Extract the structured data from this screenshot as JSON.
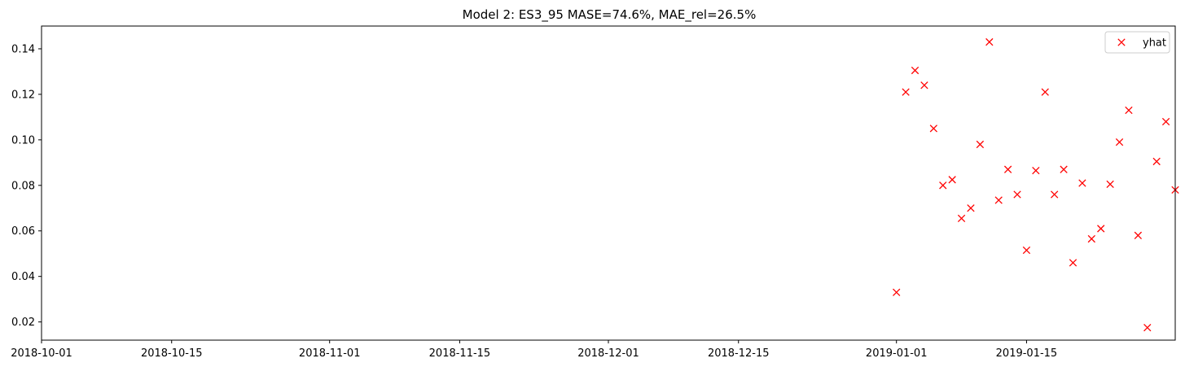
{
  "chart_data": {
    "type": "scatter",
    "title": "Model 2: ES3_95 MASE=74.6%, MAE_rel=26.5%",
    "xlabel": "",
    "ylabel": "",
    "x_type": "date",
    "xlim": [
      "2018-10-01",
      "2019-01-31"
    ],
    "ylim": [
      0.012,
      0.15
    ],
    "grid": false,
    "legend_position": "top-right",
    "marker": "x",
    "marker_color": "#ff0000",
    "x_ticks": [
      "2018-10-01",
      "2018-10-15",
      "2018-11-01",
      "2018-11-15",
      "2018-12-01",
      "2018-12-15",
      "2019-01-01",
      "2019-01-15"
    ],
    "y_ticks": [
      "0.02",
      "0.04",
      "0.06",
      "0.08",
      "0.10",
      "0.12",
      "0.14"
    ],
    "series": [
      {
        "name": "yhat",
        "x": [
          "2019-01-01",
          "2019-01-02",
          "2019-01-03",
          "2019-01-04",
          "2019-01-05",
          "2019-01-06",
          "2019-01-07",
          "2019-01-08",
          "2019-01-09",
          "2019-01-10",
          "2019-01-11",
          "2019-01-12",
          "2019-01-13",
          "2019-01-14",
          "2019-01-15",
          "2019-01-16",
          "2019-01-17",
          "2019-01-18",
          "2019-01-19",
          "2019-01-20",
          "2019-01-21",
          "2019-01-22",
          "2019-01-23",
          "2019-01-24",
          "2019-01-25",
          "2019-01-26",
          "2019-01-27",
          "2019-01-28",
          "2019-01-29",
          "2019-01-30",
          "2019-01-31"
        ],
        "y": [
          0.033,
          0.121,
          0.1305,
          0.124,
          0.105,
          0.08,
          0.0825,
          0.0655,
          0.07,
          0.098,
          0.143,
          0.0735,
          0.087,
          0.076,
          0.0515,
          0.0865,
          0.121,
          0.076,
          0.087,
          0.046,
          0.081,
          0.0565,
          0.061,
          0.0805,
          0.099,
          0.113,
          0.058,
          0.0175,
          0.0905,
          0.108,
          0.078
        ]
      }
    ]
  }
}
